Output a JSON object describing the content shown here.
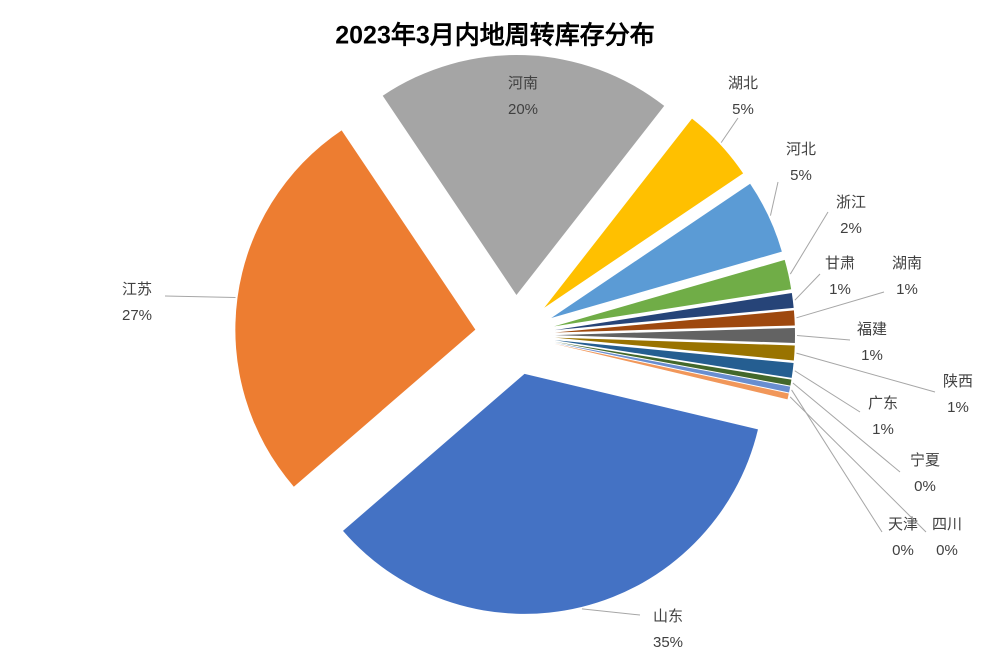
{
  "chart_data": {
    "type": "pie",
    "title": "2023年3月内地周转库存分布",
    "categories": [
      "湖北",
      "河北",
      "浙江",
      "甘肃",
      "湖南",
      "福建",
      "陕西",
      "广东",
      "宁夏",
      "天津",
      "四川",
      "山东",
      "江苏",
      "河南"
    ],
    "values": [
      5,
      5,
      2,
      1,
      1,
      1,
      1,
      1,
      0.4,
      0.4,
      0.4,
      35,
      27,
      20
    ],
    "value_labels": [
      "5%",
      "5%",
      "2%",
      "1%",
      "1%",
      "1%",
      "1%",
      "1%",
      "0%",
      "0%",
      "0%",
      "35%",
      "27%",
      "20%"
    ],
    "colors": [
      "#ffc000",
      "#5b9bd5",
      "#70ad47",
      "#264478",
      "#9e480e",
      "#636363",
      "#997300",
      "#255e91",
      "#43682b",
      "#698ed0",
      "#f1975a",
      "#4472c4",
      "#ed7d31",
      "#a5a5a5"
    ]
  }
}
